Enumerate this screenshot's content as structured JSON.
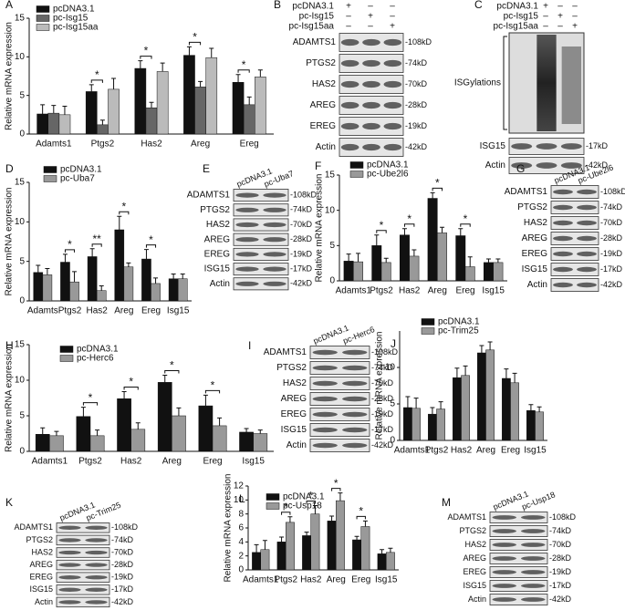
{
  "chart_data": [
    {
      "type": "bar",
      "label": "A",
      "ylabel": "Relative mRNA expression",
      "categories": [
        "Adamts1",
        "Ptgs2",
        "Has2",
        "Areg",
        "Ereg"
      ],
      "series": [
        {
          "name": "pcDNA3.1",
          "color": "#111111",
          "values": [
            2.6,
            5.5,
            8.5,
            10.2,
            6.7
          ],
          "errors": [
            1.2,
            0.9,
            1.0,
            1.1,
            1.0
          ]
        },
        {
          "name": "pc-Isg15",
          "color": "#666666",
          "values": [
            2.7,
            1.2,
            3.4,
            6.1,
            3.8
          ],
          "errors": [
            1.0,
            0.6,
            0.7,
            0.7,
            1.0
          ]
        },
        {
          "name": "pc-Isg15aa",
          "color": "#bbbbbb",
          "values": [
            2.5,
            5.8,
            8.1,
            9.9,
            7.4
          ],
          "errors": [
            1.1,
            1.4,
            1.1,
            1.2,
            0.9
          ]
        }
      ],
      "ylim": [
        0,
        15
      ],
      "yticks": [
        0,
        5,
        10,
        15
      ],
      "significance": [
        null,
        "*",
        "*",
        "*",
        "*"
      ]
    },
    {
      "type": "bar",
      "label": "D",
      "ylabel": "Relative mRNA expression",
      "categories": [
        "Adamts",
        "Ptgs2",
        "Has2",
        "Areg",
        "Ereg",
        "Isg15"
      ],
      "series": [
        {
          "name": "pcDNA3.1",
          "color": "#111111",
          "values": [
            3.6,
            4.9,
            5.6,
            9.0,
            5.3,
            2.8
          ],
          "errors": [
            0.9,
            1.0,
            1.0,
            1.7,
            1.2,
            0.6
          ]
        },
        {
          "name": "pc-Uba7",
          "color": "#999999",
          "values": [
            3.3,
            2.4,
            1.3,
            4.3,
            2.2,
            2.8
          ],
          "errors": [
            0.8,
            1.3,
            0.6,
            0.5,
            0.7,
            0.6
          ]
        }
      ],
      "ylim": [
        0,
        15
      ],
      "yticks": [
        0,
        5,
        10,
        15
      ],
      "significance": [
        null,
        "*",
        "**",
        "*",
        "*",
        null
      ]
    },
    {
      "type": "bar",
      "label": "F",
      "ylabel": "Relative mRNA expression",
      "categories": [
        "Adamts1",
        "Ptgs2",
        "Has2",
        "Areg",
        "Ereg",
        "Isg15"
      ],
      "series": [
        {
          "name": "pcDNA3.1",
          "color": "#111111",
          "values": [
            2.8,
            5.0,
            6.5,
            11.7,
            6.4,
            2.6
          ],
          "errors": [
            1.0,
            1.5,
            0.9,
            0.8,
            1.0,
            0.5
          ]
        },
        {
          "name": "pc-Ube2l6",
          "color": "#999999",
          "values": [
            2.7,
            2.6,
            3.5,
            6.8,
            2.0,
            2.6
          ],
          "errors": [
            1.2,
            0.6,
            0.9,
            0.8,
            1.4,
            0.5
          ]
        }
      ],
      "ylim": [
        0,
        15
      ],
      "yticks": [
        0,
        5,
        10,
        15
      ],
      "significance": [
        null,
        "*",
        "*",
        "*",
        "*",
        null
      ]
    },
    {
      "type": "bar",
      "label": "H",
      "ylabel": "Relative mRNA expression",
      "categories": [
        "Adamts1",
        "Ptgs2",
        "Has2",
        "Areg",
        "Ereg",
        "Isg15"
      ],
      "series": [
        {
          "name": "pcDNA3.1",
          "color": "#111111",
          "values": [
            2.4,
            4.9,
            7.4,
            9.7,
            6.4,
            2.7
          ],
          "errors": [
            0.9,
            1.3,
            1.0,
            1.0,
            1.5,
            0.5
          ]
        },
        {
          "name": "pc-Herc6",
          "color": "#999999",
          "values": [
            2.2,
            2.2,
            3.1,
            5.0,
            3.6,
            2.5
          ],
          "errors": [
            0.6,
            0.8,
            0.9,
            1.1,
            1.1,
            0.5
          ]
        }
      ],
      "ylim": [
        0,
        15
      ],
      "yticks": [
        0,
        5,
        10,
        15
      ],
      "significance": [
        null,
        "*",
        "*",
        "*",
        "*",
        null
      ]
    },
    {
      "type": "bar",
      "label": "J",
      "ylabel": "Relative mRNA expression",
      "categories": [
        "Adamts1",
        "Ptgs2",
        "Has2",
        "Areg",
        "Ereg",
        "Isg15"
      ],
      "series": [
        {
          "name": "pcDNA3.1",
          "color": "#111111",
          "values": [
            4.5,
            3.6,
            8.6,
            12.0,
            8.5,
            4.1
          ],
          "errors": [
            1.5,
            0.9,
            1.3,
            1.0,
            1.3,
            0.8
          ]
        },
        {
          "name": "pc-Trim25",
          "color": "#999999",
          "values": [
            4.4,
            4.3,
            8.9,
            12.4,
            7.9,
            3.9
          ],
          "errors": [
            1.4,
            1.0,
            1.3,
            1.1,
            1.3,
            0.7
          ]
        }
      ],
      "ylim": [
        0,
        15
      ],
      "yticks": [
        0,
        5,
        10
      ],
      "significance": [
        null,
        null,
        null,
        null,
        null,
        null
      ]
    },
    {
      "type": "bar",
      "label": "L",
      "ylabel": "Relative mRNA expression",
      "categories": [
        "Adamts1",
        "Ptgs2",
        "Has2",
        "Areg",
        "Ereg",
        "Isg15"
      ],
      "series": [
        {
          "name": "pcDNA3.1",
          "color": "#111111",
          "values": [
            2.5,
            4.0,
            4.9,
            7.0,
            4.3,
            2.3
          ],
          "errors": [
            1.1,
            0.7,
            0.5,
            0.7,
            0.5,
            0.6
          ]
        },
        {
          "name": "pc-Usp18",
          "color": "#999999",
          "values": [
            2.9,
            6.8,
            8.0,
            9.9,
            6.2,
            2.5
          ],
          "errors": [
            1.3,
            0.8,
            1.2,
            1.1,
            0.8,
            0.6
          ]
        }
      ],
      "ylim": [
        0,
        12
      ],
      "yticks": [
        0,
        2,
        4,
        6,
        8,
        10,
        12
      ],
      "significance": [
        null,
        "*",
        "*",
        "*",
        "*",
        null
      ]
    }
  ],
  "blots": [
    {
      "label": "B",
      "conditions": [
        {
          "name": "pcDNA3.1",
          "marks": [
            "+",
            "–",
            "–"
          ]
        },
        {
          "name": "pc-Isg15",
          "marks": [
            "–",
            "+",
            "–"
          ]
        },
        {
          "name": "pc-Isg15aa",
          "marks": [
            "–",
            "–",
            "+"
          ]
        }
      ],
      "bands": [
        {
          "name": "ADAMTS1",
          "size": "-108kD"
        },
        {
          "name": "PTGS2",
          "size": "-74kD"
        },
        {
          "name": "HAS2",
          "size": "-70kD"
        },
        {
          "name": "AREG",
          "size": "-28kD"
        },
        {
          "name": "EREG",
          "size": "-19kD"
        },
        {
          "name": "Actin",
          "size": "-42kD"
        }
      ]
    },
    {
      "label": "C",
      "conditions": [
        {
          "name": "pcDNA3.1",
          "marks": [
            "+",
            "–",
            "–"
          ]
        },
        {
          "name": "pc-Isg15",
          "marks": [
            "–",
            "+",
            "–"
          ]
        },
        {
          "name": "pc-Isg15aa",
          "marks": [
            "–",
            "–",
            "+"
          ]
        }
      ],
      "smear_label": "ISGylations",
      "bands": [
        {
          "name": "ISG15",
          "size": "-17kD"
        },
        {
          "name": "Actin",
          "size": "-42kD"
        }
      ]
    },
    {
      "label": "E",
      "lanes": [
        "pcDNA3.1",
        "pc-Uba7"
      ],
      "bands": [
        {
          "name": "ADAMTS1",
          "size": "-108kD"
        },
        {
          "name": "PTGS2",
          "size": "-74kD"
        },
        {
          "name": "HAS2",
          "size": "-70kD"
        },
        {
          "name": "AREG",
          "size": "-28kD"
        },
        {
          "name": "EREG",
          "size": "-19kD"
        },
        {
          "name": "ISG15",
          "size": "-17kD"
        },
        {
          "name": "Actin",
          "size": "-42kD"
        }
      ]
    },
    {
      "label": "G",
      "lanes": [
        "pcDNA3.1",
        "pc-Ube2l6"
      ],
      "bands": [
        {
          "name": "ADAMTS1",
          "size": "-108kD"
        },
        {
          "name": "PTGS2",
          "size": "-74kD"
        },
        {
          "name": "HAS2",
          "size": "-70kD"
        },
        {
          "name": "AREG",
          "size": "-28kD"
        },
        {
          "name": "EREG",
          "size": "-19kD"
        },
        {
          "name": "ISG15",
          "size": "-17kD"
        },
        {
          "name": "Actin",
          "size": "-42kD"
        }
      ]
    },
    {
      "label": "I",
      "lanes": [
        "pcDNA3.1",
        "pc-Herc6"
      ],
      "bands": [
        {
          "name": "ADAMTS1",
          "size": "-108kD"
        },
        {
          "name": "PTGS2",
          "size": "-74kD"
        },
        {
          "name": "HAS2",
          "size": "-70kD"
        },
        {
          "name": "AREG",
          "size": "-28kD"
        },
        {
          "name": "EREG",
          "size": "-19kD"
        },
        {
          "name": "ISG15",
          "size": "-17kD"
        },
        {
          "name": "Actin",
          "size": "-42kD"
        }
      ]
    },
    {
      "label": "K",
      "lanes": [
        "pcDNA3.1",
        "pc-Trim25"
      ],
      "bands": [
        {
          "name": "ADAMTS1",
          "size": "-108kD"
        },
        {
          "name": "PTGS2",
          "size": "-74kD"
        },
        {
          "name": "HAS2",
          "size": "-70kD"
        },
        {
          "name": "AREG",
          "size": "-28kD"
        },
        {
          "name": "EREG",
          "size": "-19kD"
        },
        {
          "name": "ISG15",
          "size": "-17kD"
        },
        {
          "name": "Actin",
          "size": "-42kD"
        }
      ]
    },
    {
      "label": "M",
      "lanes": [
        "pcDNA3.1",
        "pc-Usp18"
      ],
      "bands": [
        {
          "name": "ADAMTS1",
          "size": "-108kD"
        },
        {
          "name": "PTGS2",
          "size": "-74kD"
        },
        {
          "name": "HAS2",
          "size": "-70kD"
        },
        {
          "name": "AREG",
          "size": "-28kD"
        },
        {
          "name": "EREG",
          "size": "-19kD"
        },
        {
          "name": "ISG15",
          "size": "-17kD"
        },
        {
          "name": "Actin",
          "size": "-42kD"
        }
      ]
    }
  ]
}
